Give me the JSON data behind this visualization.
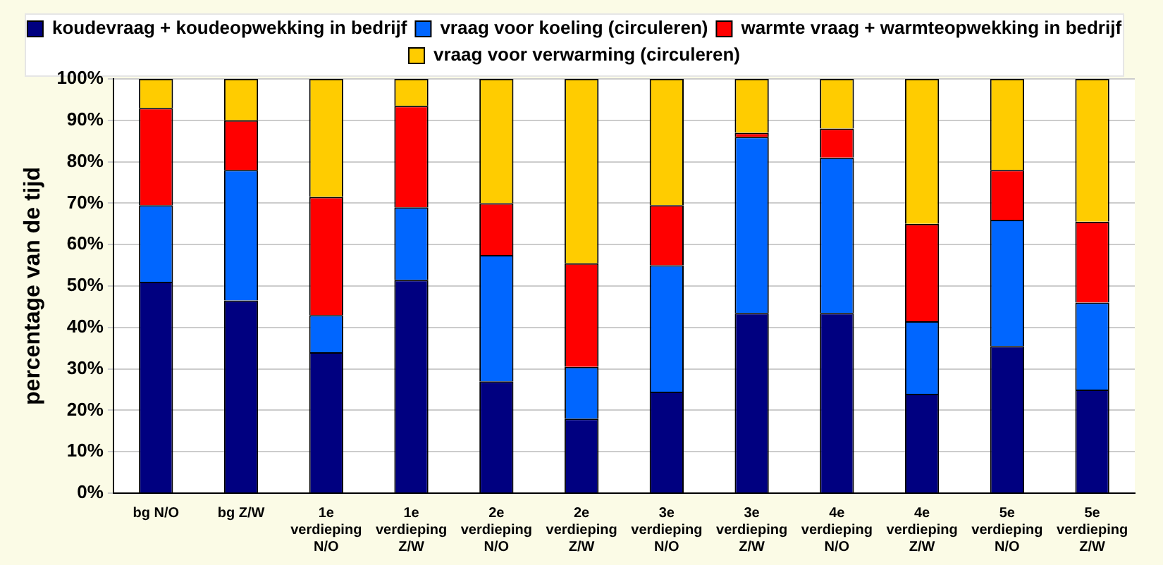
{
  "chart_data": {
    "type": "bar",
    "stacked": true,
    "ylabel": "percentage van de tijd",
    "categories": [
      "bg N/O",
      "bg Z/W",
      "1e\nverdieping\nN/O",
      "1e\nverdieping\nZ/W",
      "2e\nverdieping\nN/O",
      "2e\nverdieping\nZ/W",
      "3e\nverdieping\nN/O",
      "3e\nverdieping\nZ/W",
      "4e\nverdieping\nN/O",
      "4e\nverdieping\nZ/W",
      "5e\nverdieping\nN/O",
      "5e\nverdieping\nZ/W"
    ],
    "series": [
      {
        "name": "koudevraag + koudeopwekking in bedrijf",
        "color": "#000080",
        "values": [
          51,
          46.5,
          34,
          51.5,
          27,
          18,
          24.5,
          43.5,
          43.5,
          24,
          35.5,
          25
        ]
      },
      {
        "name": "vraag voor koeling (circuleren)",
        "color": "#0066ff",
        "values": [
          18.5,
          31.5,
          9,
          17.5,
          30.5,
          12.5,
          30.5,
          42.5,
          37.5,
          17.5,
          30.5,
          21
        ]
      },
      {
        "name": "warmte vraag + warmteopwekking in bedrijf",
        "color": "#ff0000",
        "values": [
          23.5,
          12,
          28.5,
          24.5,
          12.5,
          25,
          14.5,
          1,
          7,
          23.5,
          12,
          19.5
        ]
      },
      {
        "name": "vraag voor verwarming (circuleren)",
        "color": "#ffcc00",
        "values": [
          7,
          10,
          28.5,
          6.5,
          30,
          44.5,
          30.5,
          13,
          12,
          35,
          22,
          34.5
        ]
      }
    ],
    "ylim": [
      0,
      100
    ],
    "yticks": [
      {
        "value": 0,
        "label": "0%"
      },
      {
        "value": 10,
        "label": "10%"
      },
      {
        "value": 20,
        "label": "20%"
      },
      {
        "value": 30,
        "label": "30%"
      },
      {
        "value": 40,
        "label": "40%"
      },
      {
        "value": 50,
        "label": "50%"
      },
      {
        "value": 60,
        "label": "60%"
      },
      {
        "value": 70,
        "label": "70%"
      },
      {
        "value": 80,
        "label": "80%"
      },
      {
        "value": 90,
        "label": "90%"
      },
      {
        "value": 100,
        "label": "100%"
      }
    ],
    "grid": "y",
    "legend": "top"
  }
}
